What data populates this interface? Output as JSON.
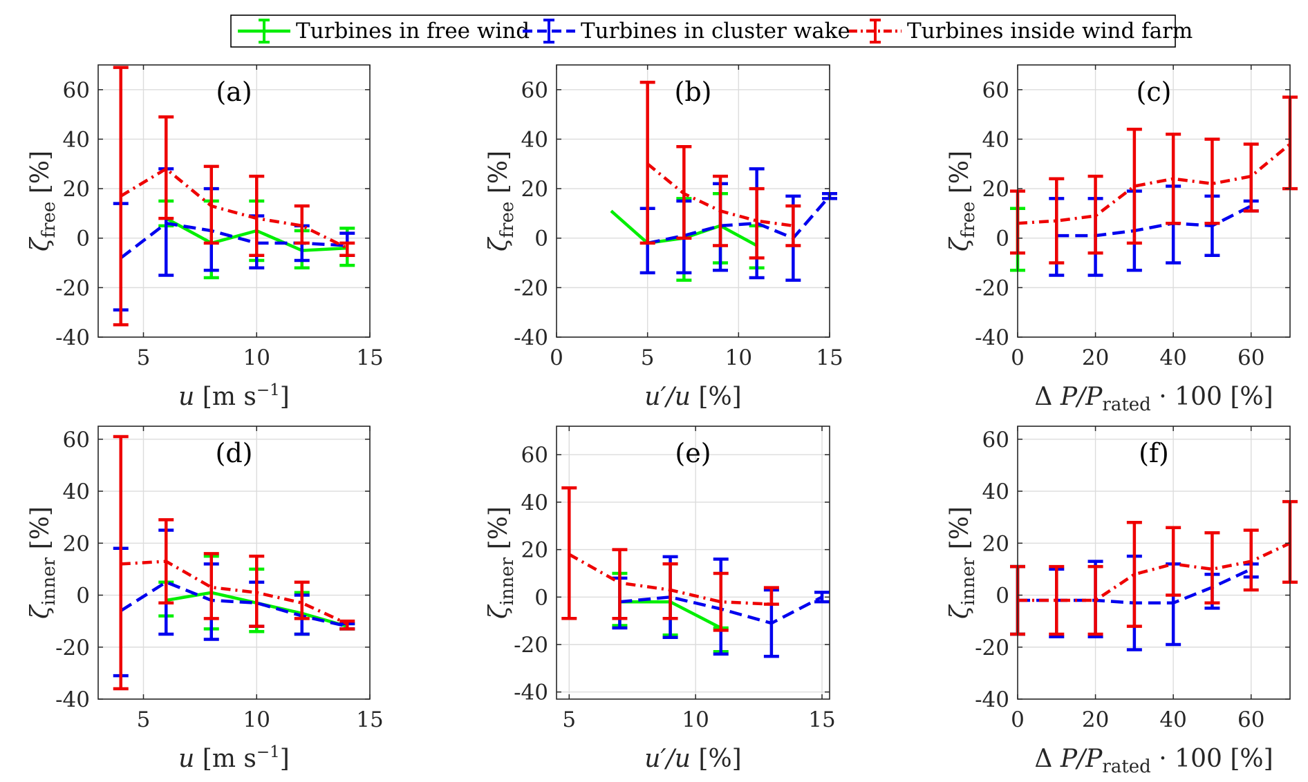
{
  "chart_data": {
    "type": "line",
    "legend": {
      "placement": "top-center",
      "entries": [
        {
          "label": "Turbines in free wind",
          "color": "#00ee00",
          "style": "solid"
        },
        {
          "label": "Turbines in cluster wake",
          "color": "#0000ee",
          "style": "dashed"
        },
        {
          "label": "Turbines inside wind farm",
          "color": "#ee0000",
          "style": "dashdot"
        }
      ]
    },
    "panels": [
      {
        "id": "a",
        "label": "(a)",
        "xlim": [
          3,
          15
        ],
        "ylim": [
          -40,
          70
        ],
        "xticks": [
          5,
          10,
          15
        ],
        "yticks": [
          -40,
          -20,
          0,
          20,
          40,
          60
        ],
        "ylabel_symbol": "ζ",
        "ylabel_sub": "free",
        "ylabel_unit": "[%]",
        "xlabel": "u  [m s⁻¹]",
        "series": [
          {
            "name": "Turbines in free wind",
            "x": [
              6,
              8,
              10,
              12,
              14
            ],
            "y": [
              8,
              -2,
              3,
              -5,
              -4
            ],
            "lo": [
              5,
              -16,
              -9,
              -12,
              -11
            ],
            "hi": [
              15,
              15,
              15,
              3,
              4
            ]
          },
          {
            "name": "Turbines in cluster wake",
            "x": [
              4,
              6,
              8,
              10,
              12,
              14
            ],
            "y": [
              -8,
              6,
              3,
              -2,
              -2,
              -3
            ],
            "lo": [
              -29,
              -15,
              -13,
              -12,
              -9,
              -7
            ],
            "hi": [
              14,
              28,
              20,
              9,
              5,
              2
            ]
          },
          {
            "name": "Turbines inside wind farm",
            "x": [
              4,
              6,
              8,
              10,
              12,
              14
            ],
            "y": [
              17,
              28,
              13,
              8,
              5,
              -4
            ],
            "lo": [
              -35,
              8,
              -2,
              -7,
              -2,
              -7
            ],
            "hi": [
              69,
              49,
              29,
              25,
              13,
              -2
            ]
          }
        ]
      },
      {
        "id": "b",
        "label": "(b)",
        "xlim": [
          0,
          15
        ],
        "ylim": [
          -40,
          70
        ],
        "xticks": [
          0,
          5,
          10,
          15
        ],
        "yticks": [
          -40,
          -20,
          0,
          20,
          40,
          60
        ],
        "ylabel_symbol": "ζ",
        "ylabel_sub": "free",
        "ylabel_unit": "[%]",
        "xlabel": "u′/u [%]",
        "series": [
          {
            "name": "Turbines in free wind",
            "x": [
              3,
              5,
              7,
              9,
              11
            ],
            "y": [
              11,
              -2,
              0,
              5,
              -3
            ],
            "lo": [
              null,
              null,
              -17,
              -10,
              -12
            ],
            "hi": [
              null,
              null,
              16,
              18,
              5
            ]
          },
          {
            "name": "Turbines in cluster wake",
            "x": [
              5,
              7,
              9,
              11,
              13,
              15
            ],
            "y": [
              -2,
              1,
              5,
              6,
              0,
              17
            ],
            "lo": [
              -14,
              -14,
              -13,
              -16,
              -17,
              16
            ],
            "hi": [
              12,
              15,
              22,
              28,
              17,
              18
            ]
          },
          {
            "name": "Turbines inside wind farm",
            "x": [
              5,
              7,
              9,
              11,
              13
            ],
            "y": [
              30,
              18,
              11,
              7,
              5
            ],
            "lo": [
              -2,
              0,
              -3,
              -8,
              -3
            ],
            "hi": [
              63,
              37,
              25,
              20,
              13
            ]
          }
        ]
      },
      {
        "id": "c",
        "label": "(c)",
        "xlim": [
          0,
          70
        ],
        "ylim": [
          -40,
          70
        ],
        "xticks": [
          0,
          20,
          40,
          60
        ],
        "yticks": [
          -40,
          -20,
          0,
          20,
          40,
          60
        ],
        "ylabel_symbol": "ζ",
        "ylabel_sub": "free",
        "ylabel_unit": "[%]",
        "xlabel": "Δ  P/P_rated · 100 [%]",
        "series": [
          {
            "name": "Turbines in free wind",
            "x": [
              0
            ],
            "y": [
              0
            ],
            "lo": [
              -13
            ],
            "hi": [
              12
            ]
          },
          {
            "name": "Turbines in cluster wake",
            "x": [
              10,
              20,
              30,
              40,
              50,
              60
            ],
            "y": [
              1,
              1,
              3,
              6,
              5,
              13
            ],
            "lo": [
              -15,
              -15,
              -13,
              -10,
              -7,
              11
            ],
            "hi": [
              16,
              16,
              19,
              21,
              17,
              15
            ]
          },
          {
            "name": "Turbines inside wind farm",
            "x": [
              0,
              10,
              20,
              30,
              40,
              50,
              60,
              70
            ],
            "y": [
              6,
              7,
              9,
              21,
              24,
              22,
              25,
              38
            ],
            "lo": [
              -6,
              -10,
              -6,
              -2,
              6,
              6,
              11,
              20
            ],
            "hi": [
              19,
              24,
              25,
              44,
              42,
              40,
              38,
              57
            ]
          }
        ]
      },
      {
        "id": "d",
        "label": "(d)",
        "xlim": [
          3,
          15
        ],
        "ylim": [
          -40,
          65
        ],
        "xticks": [
          5,
          10,
          15
        ],
        "yticks": [
          -40,
          -20,
          0,
          20,
          40,
          60
        ],
        "ylabel_symbol": "ζ",
        "ylabel_sub": "inner",
        "ylabel_unit": "[%]",
        "xlabel": "u  [m s⁻¹]",
        "series": [
          {
            "name": "Turbines in free wind",
            "x": [
              6,
              8,
              10,
              12,
              14
            ],
            "y": [
              -2,
              1,
              -3,
              -7,
              -12
            ],
            "lo": [
              -8,
              -13,
              -14,
              -15,
              -13
            ],
            "hi": [
              5,
              15,
              10,
              1,
              -11
            ]
          },
          {
            "name": "Turbines in cluster wake",
            "x": [
              4,
              6,
              8,
              10,
              12,
              14
            ],
            "y": [
              -6,
              5,
              -2,
              -3,
              -8,
              -12
            ],
            "lo": [
              -31,
              -15,
              -17,
              -12,
              -15,
              -13
            ],
            "hi": [
              18,
              25,
              12,
              5,
              0,
              -11
            ]
          },
          {
            "name": "Turbines inside wind farm",
            "x": [
              4,
              6,
              8,
              10,
              12,
              14
            ],
            "y": [
              12,
              13,
              3,
              1,
              -3,
              -11
            ],
            "lo": [
              -36,
              -3,
              -9,
              -12,
              -9,
              -13
            ],
            "hi": [
              61,
              29,
              16,
              15,
              5,
              -10
            ]
          }
        ]
      },
      {
        "id": "e",
        "label": "(e)",
        "xlim": [
          4.5,
          15.3
        ],
        "ylim": [
          -43,
          72
        ],
        "xticks": [
          5,
          10,
          15
        ],
        "yticks": [
          -40,
          -20,
          0,
          20,
          40,
          60
        ],
        "ylabel_symbol": "ζ",
        "ylabel_sub": "inner",
        "ylabel_unit": "[%]",
        "xlabel": "u′/u [%]",
        "series": [
          {
            "name": "Turbines in free wind",
            "x": [
              7,
              9,
              11
            ],
            "y": [
              -2,
              -2,
              -13
            ],
            "lo": [
              -12,
              -16,
              -23
            ],
            "hi": [
              10,
              14,
              -13
            ]
          },
          {
            "name": "Turbines in cluster wake",
            "x": [
              7,
              9,
              11,
              13,
              15
            ],
            "y": [
              -2,
              0,
              -5,
              -11,
              0
            ],
            "lo": [
              -13,
              -17,
              -24,
              -25,
              -2
            ],
            "hi": [
              8,
              17,
              16,
              3,
              2
            ]
          },
          {
            "name": "Turbines inside wind farm",
            "x": [
              5,
              7,
              9,
              11,
              13
            ],
            "y": [
              18,
              6,
              3,
              -2,
              -3
            ],
            "lo": [
              -9,
              -9,
              -9,
              -14,
              -3
            ],
            "hi": [
              46,
              20,
              14,
              10,
              4
            ]
          }
        ]
      },
      {
        "id": "f",
        "label": "(f)",
        "xlim": [
          0,
          70
        ],
        "ylim": [
          -40,
          65
        ],
        "xticks": [
          0,
          20,
          40,
          60
        ],
        "yticks": [
          -40,
          -20,
          0,
          20,
          40,
          60
        ],
        "ylabel_symbol": "ζ",
        "ylabel_sub": "inner",
        "ylabel_unit": "[%]",
        "xlabel": "Δ  P/P_rated · 100 [%]",
        "series": [
          {
            "name": "Turbines in free wind",
            "x": [
              0
            ],
            "y": [
              -2
            ],
            "lo": [
              -15
            ],
            "hi": [
              11
            ]
          },
          {
            "name": "Turbines in cluster wake",
            "x": [
              0,
              10,
              20,
              30,
              40,
              50,
              60
            ],
            "y": [
              -2,
              -2,
              -2,
              -3,
              -3,
              3,
              10
            ],
            "lo": [
              -15,
              -16,
              -16,
              -21,
              -19,
              -5,
              7
            ],
            "hi": [
              11,
              10,
              13,
              15,
              12,
              8,
              12
            ]
          },
          {
            "name": "Turbines inside wind farm",
            "x": [
              0,
              10,
              20,
              30,
              40,
              50,
              60,
              70
            ],
            "y": [
              -2,
              -2,
              -2,
              8,
              12,
              10,
              13,
              20
            ],
            "lo": [
              -15,
              -15,
              -15,
              -12,
              0,
              -3,
              2,
              5
            ],
            "hi": [
              11,
              11,
              11,
              28,
              26,
              24,
              25,
              36
            ]
          }
        ]
      }
    ]
  }
}
